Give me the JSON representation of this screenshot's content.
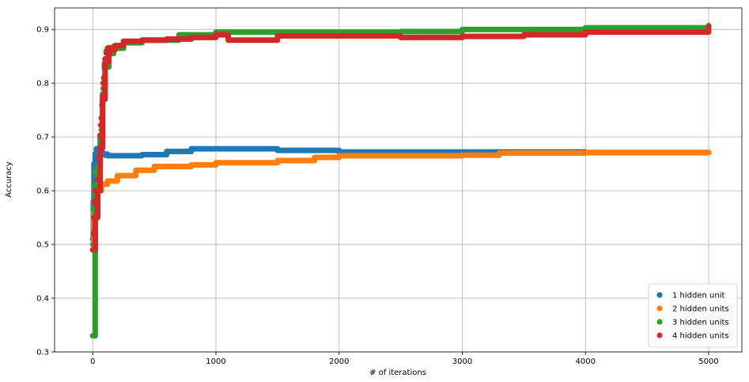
{
  "chart_data": {
    "type": "scatter",
    "xlabel": "# of iterations",
    "ylabel": "Accuracy",
    "xlim": [
      -310,
      5270
    ],
    "ylim": [
      0.3,
      0.94
    ],
    "x_ticks": [
      0,
      1000,
      2000,
      3000,
      4000,
      5000
    ],
    "y_ticks": [
      0.3,
      0.4,
      0.5,
      0.6,
      0.7,
      0.8,
      0.9
    ],
    "grid": true,
    "legend_position": "lower-right",
    "series": [
      {
        "name": "1 hidden unit",
        "color": "#1f77b4",
        "points": [
          [
            0,
            0.51
          ],
          [
            5,
            0.58
          ],
          [
            10,
            0.65
          ],
          [
            20,
            0.668
          ],
          [
            30,
            0.678
          ],
          [
            50,
            0.672
          ],
          [
            80,
            0.668
          ],
          [
            120,
            0.665
          ],
          [
            200,
            0.665
          ],
          [
            400,
            0.667
          ],
          [
            600,
            0.673
          ],
          [
            800,
            0.678
          ],
          [
            1000,
            0.678
          ],
          [
            1300,
            0.678
          ],
          [
            1500,
            0.675
          ],
          [
            2000,
            0.672
          ],
          [
            3000,
            0.672
          ],
          [
            4000,
            0.671
          ],
          [
            5000,
            0.671
          ]
        ],
        "scatter": [
          [
            0,
            0.51
          ],
          [
            5,
            0.58
          ],
          [
            10,
            0.65
          ],
          [
            20,
            0.668
          ],
          [
            30,
            0.678
          ],
          [
            40,
            0.675
          ],
          [
            50,
            0.672
          ],
          [
            80,
            0.668
          ],
          [
            100,
            0.666
          ],
          [
            15,
            0.62
          ],
          [
            25,
            0.66
          ]
        ]
      },
      {
        "name": "2 hidden units",
        "color": "#ff7f0e",
        "points": [
          [
            0,
            0.5
          ],
          [
            10,
            0.56
          ],
          [
            20,
            0.58
          ],
          [
            40,
            0.6
          ],
          [
            70,
            0.612
          ],
          [
            120,
            0.618
          ],
          [
            200,
            0.628
          ],
          [
            350,
            0.638
          ],
          [
            500,
            0.645
          ],
          [
            800,
            0.648
          ],
          [
            1000,
            0.652
          ],
          [
            1500,
            0.656
          ],
          [
            1800,
            0.662
          ],
          [
            2000,
            0.665
          ],
          [
            3000,
            0.666
          ],
          [
            3300,
            0.67
          ],
          [
            4000,
            0.671
          ],
          [
            5000,
            0.671
          ]
        ],
        "scatter": [
          [
            0,
            0.5
          ],
          [
            8,
            0.54
          ],
          [
            12,
            0.58
          ],
          [
            18,
            0.6
          ],
          [
            25,
            0.595
          ],
          [
            35,
            0.605
          ],
          [
            50,
            0.61
          ]
        ]
      },
      {
        "name": "3 hidden units",
        "color": "#2ca02c",
        "points": [
          [
            0,
            0.33
          ],
          [
            20,
            0.6
          ],
          [
            40,
            0.64
          ],
          [
            60,
            0.7
          ],
          [
            80,
            0.78
          ],
          [
            100,
            0.83
          ],
          [
            130,
            0.855
          ],
          [
            170,
            0.865
          ],
          [
            250,
            0.875
          ],
          [
            400,
            0.88
          ],
          [
            700,
            0.89
          ],
          [
            1000,
            0.895
          ],
          [
            1500,
            0.895
          ],
          [
            2000,
            0.895
          ],
          [
            2500,
            0.896
          ],
          [
            3000,
            0.9
          ],
          [
            4000,
            0.903
          ],
          [
            5000,
            0.907
          ]
        ],
        "scatter": [
          [
            0,
            0.33
          ],
          [
            5,
            0.5
          ],
          [
            10,
            0.57
          ],
          [
            15,
            0.61
          ],
          [
            20,
            0.635
          ],
          [
            30,
            0.64
          ],
          [
            40,
            0.63
          ],
          [
            50,
            0.66
          ],
          [
            60,
            0.695
          ],
          [
            70,
            0.713
          ],
          [
            80,
            0.758
          ],
          [
            85,
            0.79
          ],
          [
            90,
            0.81
          ],
          [
            95,
            0.835
          ],
          [
            100,
            0.845
          ],
          [
            110,
            0.86
          ],
          [
            120,
            0.865
          ],
          [
            140,
            0.862
          ],
          [
            160,
            0.867
          ]
        ]
      },
      {
        "name": "4 hidden units",
        "color": "#d62728",
        "points": [
          [
            0,
            0.49
          ],
          [
            20,
            0.55
          ],
          [
            40,
            0.6
          ],
          [
            60,
            0.68
          ],
          [
            80,
            0.77
          ],
          [
            100,
            0.84
          ],
          [
            130,
            0.862
          ],
          [
            180,
            0.87
          ],
          [
            250,
            0.878
          ],
          [
            400,
            0.88
          ],
          [
            600,
            0.882
          ],
          [
            800,
            0.885
          ],
          [
            1000,
            0.89
          ],
          [
            1100,
            0.88
          ],
          [
            1500,
            0.888
          ],
          [
            2000,
            0.888
          ],
          [
            2500,
            0.885
          ],
          [
            3000,
            0.887
          ],
          [
            3500,
            0.89
          ],
          [
            4000,
            0.895
          ],
          [
            5000,
            0.905
          ]
        ],
        "scatter": [
          [
            0,
            0.49
          ],
          [
            5,
            0.52
          ],
          [
            10,
            0.55
          ],
          [
            15,
            0.58
          ],
          [
            20,
            0.6
          ],
          [
            25,
            0.575
          ],
          [
            30,
            0.6
          ],
          [
            40,
            0.62
          ],
          [
            50,
            0.66
          ],
          [
            60,
            0.703
          ],
          [
            65,
            0.722
          ],
          [
            70,
            0.735
          ],
          [
            75,
            0.76
          ],
          [
            80,
            0.775
          ],
          [
            85,
            0.8
          ],
          [
            90,
            0.81
          ],
          [
            95,
            0.83
          ],
          [
            100,
            0.845
          ],
          [
            110,
            0.856
          ],
          [
            120,
            0.862
          ],
          [
            130,
            0.866
          ]
        ]
      }
    ]
  }
}
